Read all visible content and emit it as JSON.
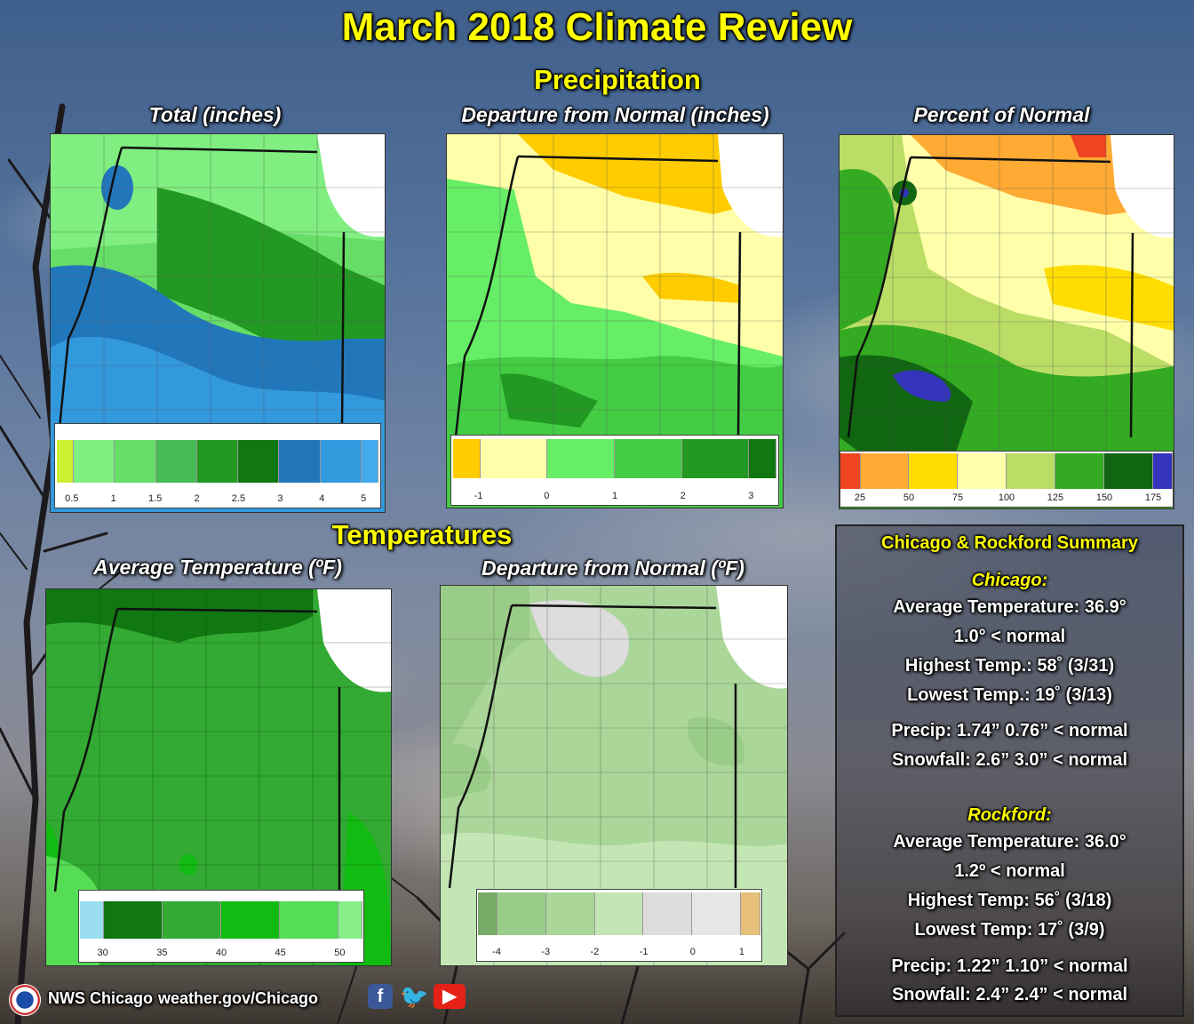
{
  "title": "March 2018 Climate Review",
  "precip_section": "Precipitation",
  "temp_section": "Temperatures",
  "maps": {
    "precip_total": {
      "label": "Total (inches)",
      "legend": {
        "colors": [
          "#ccee33",
          "#80ee80",
          "#66dd66",
          "#44bb55",
          "#229922",
          "#117711",
          "#2277bb",
          "#3399dd",
          "#44aaee"
        ],
        "ticks": [
          "0.5",
          "1",
          "1.5",
          "2",
          "2.5",
          "3",
          "4",
          "5"
        ]
      }
    },
    "precip_departure": {
      "label": "Departure from Normal (inches)",
      "legend": {
        "colors": [
          "#ffcc00",
          "#ffffaa",
          "#66ee66",
          "#44cc44",
          "#229922",
          "#117711"
        ],
        "ticks": [
          "-1",
          "0",
          "1",
          "2",
          "3"
        ]
      }
    },
    "precip_percent": {
      "label": "Percent of Normal",
      "legend": {
        "colors": [
          "#ee4422",
          "#ffaa33",
          "#ffdd00",
          "#ffffaa",
          "#bbdd66",
          "#33aa22",
          "#116611",
          "#3333bb"
        ],
        "ticks": [
          "25",
          "50",
          "75",
          "100",
          "125",
          "150",
          "175"
        ]
      }
    },
    "avg_temp": {
      "label": "Average Temperature (ºF)",
      "legend": {
        "colors": [
          "#99ddee",
          "#117711",
          "#33aa33",
          "#11bb11",
          "#55dd55",
          "#88ee88"
        ],
        "ticks": [
          "30",
          "35",
          "40",
          "45",
          "50"
        ]
      }
    },
    "temp_departure": {
      "label": "Departure from Normal (ºF)",
      "legend": {
        "colors": [
          "#77aa66",
          "#99cc88",
          "#aad699",
          "#c4e6b4",
          "#dddddd",
          "#e6e6e6",
          "#e6c07a"
        ],
        "ticks": [
          "-4",
          "-3",
          "-2",
          "-1",
          "0",
          "1"
        ]
      }
    }
  },
  "summary": {
    "heading": "Chicago & Rockford Summary",
    "chicago": {
      "name": "Chicago:",
      "avg_temp": "Average Temperature: 36.9°",
      "avg_dep": "1.0° < normal",
      "high": "Highest Temp.: 58˚ (3/31)",
      "low": "Lowest Temp.: 19˚ (3/13)",
      "precip": "Precip: 1.74”  0.76” < normal",
      "snow": "Snowfall: 2.6”  3.0” < normal"
    },
    "rockford": {
      "name": "Rockford:",
      "avg_temp": "Average Temperature: 36.0°",
      "avg_dep": "1.2º < normal",
      "high": "Highest Temp: 56˚ (3/18)",
      "low": "Lowest Temp: 17˚ (3/9)",
      "precip": "Precip: 1.22”  1.10” < normal",
      "snow": "Snowfall: 2.4”  2.4” < normal"
    }
  },
  "footer": {
    "org": "NWS Chicago",
    "url": "weather.gov/Chicago",
    "icons": [
      "facebook-icon",
      "twitter-icon",
      "youtube-icon"
    ]
  }
}
